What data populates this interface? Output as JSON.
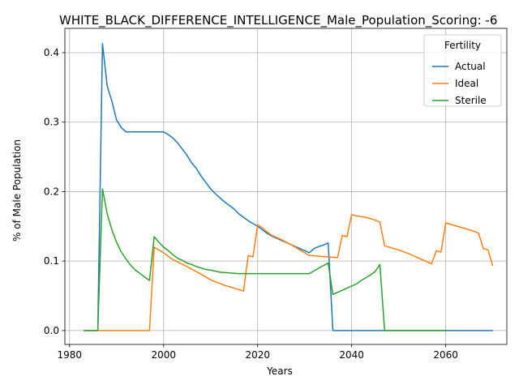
{
  "chart_data": {
    "type": "line",
    "title": "WHITE_BLACK_DIFFERENCE_INTELLIGENCE_Male_Population_Scoring: -6",
    "xlabel": "Years",
    "ylabel": "% of Male Population",
    "xlim": [
      1979,
      2073
    ],
    "ylim": [
      -0.02,
      0.435
    ],
    "xticks": [
      1980,
      2000,
      2020,
      2040,
      2060
    ],
    "yticks": [
      0.0,
      0.1,
      0.2,
      0.3,
      0.4
    ],
    "xtick_labels": [
      "1980",
      "2000",
      "2020",
      "2040",
      "2060"
    ],
    "ytick_labels": [
      "0.0",
      "0.1",
      "0.2",
      "0.3",
      "0.4"
    ],
    "grid": true,
    "legend": {
      "title": "Fertility",
      "placement": "top-right",
      "entries": [
        "Actual",
        "Ideal",
        "Sterile"
      ]
    },
    "series": [
      {
        "name": "Actual",
        "color": "#1f77b4",
        "x": [
          1983,
          1986,
          1987,
          1988,
          1989,
          1990,
          1991,
          1992,
          1993,
          1994,
          1995,
          1996,
          1997,
          1998,
          1999,
          2000,
          2001,
          2002,
          2003,
          2004,
          2005,
          2006,
          2007,
          2008,
          2009,
          2010,
          2011,
          2012,
          2013,
          2014,
          2015,
          2016,
          2017,
          2018,
          2019,
          2020,
          2021,
          2022,
          2023,
          2024,
          2025,
          2026,
          2027,
          2028,
          2029,
          2030,
          2031,
          2032,
          2033,
          2034,
          2035,
          2036,
          2037,
          2040,
          2050,
          2060,
          2070
        ],
        "y": [
          0.0,
          0.0,
          0.413,
          0.352,
          0.33,
          0.303,
          0.292,
          0.286,
          0.286,
          0.286,
          0.286,
          0.286,
          0.286,
          0.286,
          0.286,
          0.286,
          0.282,
          0.277,
          0.27,
          0.261,
          0.252,
          0.241,
          0.233,
          0.222,
          0.213,
          0.204,
          0.197,
          0.191,
          0.185,
          0.18,
          0.175,
          0.168,
          0.163,
          0.158,
          0.154,
          0.15,
          0.145,
          0.14,
          0.136,
          0.133,
          0.13,
          0.127,
          0.124,
          0.121,
          0.118,
          0.115,
          0.112,
          0.118,
          0.121,
          0.123,
          0.126,
          0.0,
          0.0,
          0.0,
          0.0,
          0.0,
          0.0
        ]
      },
      {
        "name": "Ideal",
        "color": "#ff7f0e",
        "x": [
          1983,
          1986,
          1990,
          1995,
          1997,
          1998,
          2000,
          2002,
          2005,
          2008,
          2010,
          2013,
          2015,
          2017,
          2018,
          2019,
          2020,
          2021,
          2022,
          2023,
          2025,
          2027,
          2029,
          2030,
          2031,
          2033,
          2035,
          2037,
          2038,
          2039,
          2040,
          2041,
          2043,
          2045,
          2046,
          2047,
          2050,
          2052,
          2055,
          2057,
          2058,
          2059,
          2060,
          2063,
          2066,
          2067,
          2068,
          2069,
          2070
        ],
        "y": [
          0.0,
          0.0,
          0.0,
          0.0,
          0.0,
          0.12,
          0.112,
          0.102,
          0.092,
          0.081,
          0.073,
          0.065,
          0.061,
          0.057,
          0.108,
          0.106,
          0.152,
          0.148,
          0.142,
          0.137,
          0.131,
          0.124,
          0.116,
          0.112,
          0.108,
          0.107,
          0.106,
          0.105,
          0.137,
          0.135,
          0.167,
          0.165,
          0.163,
          0.159,
          0.156,
          0.122,
          0.116,
          0.111,
          0.102,
          0.096,
          0.115,
          0.113,
          0.155,
          0.149,
          0.143,
          0.14,
          0.118,
          0.116,
          0.093
        ]
      },
      {
        "name": "Sterile",
        "color": "#2ca02c",
        "x": [
          1983,
          1986,
          1987,
          1988,
          1989,
          1990,
          1991,
          1992,
          1993,
          1994,
          1995,
          1996,
          1997,
          1998,
          1999,
          2000,
          2001,
          2002,
          2003,
          2004,
          2005,
          2006,
          2007,
          2008,
          2009,
          2010,
          2012,
          2014,
          2016,
          2018,
          2020,
          2025,
          2031,
          2033,
          2035,
          2036,
          2037,
          2038,
          2039,
          2040,
          2041,
          2042,
          2043,
          2044,
          2045,
          2046,
          2047,
          2050,
          2055,
          2060
        ],
        "y": [
          0.0,
          0.0,
          0.204,
          0.168,
          0.145,
          0.127,
          0.113,
          0.103,
          0.094,
          0.087,
          0.082,
          0.077,
          0.072,
          0.135,
          0.127,
          0.12,
          0.115,
          0.109,
          0.104,
          0.101,
          0.097,
          0.095,
          0.092,
          0.09,
          0.088,
          0.087,
          0.084,
          0.083,
          0.082,
          0.082,
          0.082,
          0.082,
          0.082,
          0.09,
          0.097,
          0.052,
          0.055,
          0.058,
          0.061,
          0.064,
          0.067,
          0.072,
          0.076,
          0.08,
          0.085,
          0.095,
          0.0,
          0.0,
          0.0,
          0.0
        ]
      }
    ]
  }
}
